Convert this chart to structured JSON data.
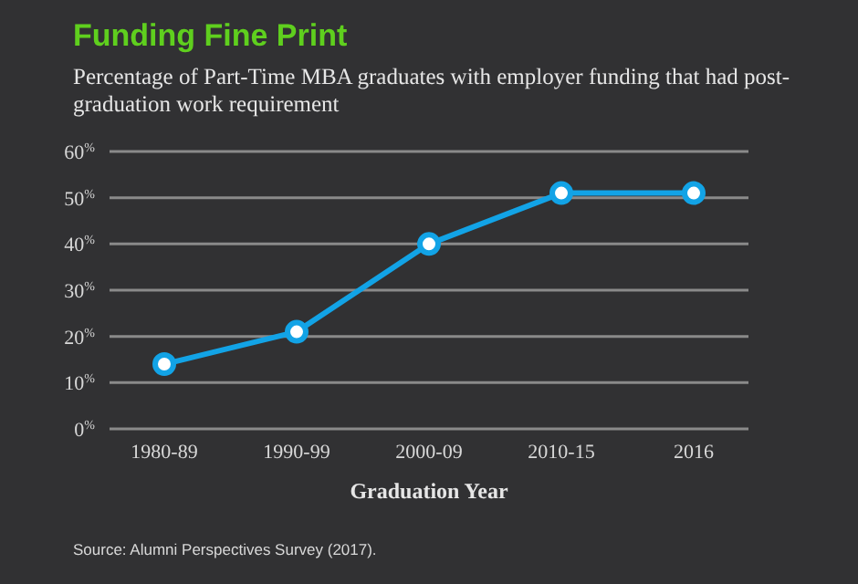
{
  "chart_data": {
    "type": "line",
    "title": "Funding Fine Print",
    "subtitle": "Percentage of Part-Time MBA graduates with employer funding that had post-graduation work requirement",
    "xlabel": "Graduation Year",
    "categories": [
      "1980-89",
      "1990-99",
      "2000-09",
      "2010-15",
      "2016"
    ],
    "series": [
      {
        "color": "#12a3e6",
        "values": [
          14,
          21,
          40,
          51,
          51
        ]
      }
    ],
    "ylim": [
      0,
      60
    ],
    "yticks": [
      {
        "value": 0,
        "label": "0$^{%}$"
      },
      {
        "value": 10,
        "label": "10$^{%}$"
      },
      {
        "value": 20,
        "label": "20$^{%}$"
      },
      {
        "value": 30,
        "label": "30$^{%}$"
      },
      {
        "value": 40,
        "label": "40$^{%}$"
      },
      {
        "value": 50,
        "label": "50$^{%}$"
      },
      {
        "value": 60,
        "label": "60$^{%}$"
      }
    ],
    "grid": "y",
    "marker": "circle",
    "line_style": "solid",
    "annotations": [
      "Source: Alumni Perspectives Survey (2017)."
    ]
  }
}
